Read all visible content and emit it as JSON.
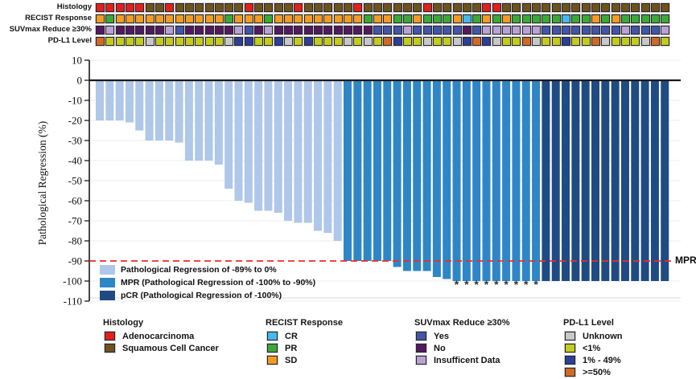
{
  "chart_data": {
    "type": "bar",
    "title": "",
    "xlabel": "",
    "ylabel": "Pathological Regression (%)",
    "ylim": [
      -110,
      10
    ],
    "yticks": [
      10,
      0,
      -10,
      -20,
      -30,
      -40,
      -50,
      -60,
      -70,
      -80,
      -90,
      -100,
      -110
    ],
    "grid": true,
    "legend_position": "inside bottom-left",
    "n_bars": 58,
    "values": [
      -20,
      -20,
      -20,
      -21,
      -25,
      -30,
      -30,
      -30,
      -31,
      -40,
      -40,
      -40,
      -42,
      -54,
      -60,
      -61,
      -65,
      -65,
      -66,
      -70,
      -71,
      -71,
      -75,
      -76,
      -80,
      -90,
      -90,
      -90,
      -90,
      -90,
      -93,
      -95,
      -95,
      -95,
      -98,
      -99,
      -100,
      -100,
      -100,
      -100,
      -100,
      -100,
      -100,
      -100,
      -100,
      -100,
      -100,
      -100,
      -100,
      -100,
      -100,
      -100,
      -100,
      -100,
      -100,
      -100,
      -100,
      -100
    ],
    "groups": {
      "light_count": 25,
      "mpr_count": 20,
      "pcr_count": 13
    },
    "reference_line": {
      "y": -90,
      "label": "MPR",
      "style": "dashed",
      "color": "#ee2b2b"
    },
    "asterisk_bar_indices_1based": [
      37,
      38,
      39,
      40,
      41,
      42,
      43,
      44,
      45
    ]
  },
  "tracks": {
    "rows": [
      {
        "label": "Histology",
        "palette": {
          "A": "adeno_red",
          "S": "squamous_brown"
        },
        "values": [
          "A",
          "A",
          "A",
          "A",
          "A",
          "S",
          "S",
          "A",
          "S",
          "S",
          "S",
          "S",
          "S",
          "S",
          "S",
          "A",
          "S",
          "S",
          "S",
          "S",
          "A",
          "S",
          "S",
          "S",
          "S",
          "S",
          "A",
          "S",
          "S",
          "S",
          "S",
          "S",
          "S",
          "A",
          "S",
          "S",
          "S",
          "S",
          "S",
          "A",
          "A",
          "S",
          "S",
          "S",
          "S",
          "S",
          "S",
          "S",
          "S",
          "S",
          "S",
          "S",
          "S",
          "S",
          "S",
          "S",
          "S",
          "S"
        ]
      },
      {
        "label": "RECIST Response",
        "palette": {
          "CR": "recist_cr",
          "PR": "recist_pr",
          "SD": "recist_sd"
        },
        "values": [
          "SD",
          "PR",
          "SD",
          "SD",
          "SD",
          "SD",
          "SD",
          "SD",
          "SD",
          "SD",
          "SD",
          "SD",
          "SD",
          "PR",
          "SD",
          "SD",
          "SD",
          "PR",
          "SD",
          "SD",
          "SD",
          "SD",
          "SD",
          "SD",
          "SD",
          "SD",
          "SD",
          "PR",
          "SD",
          "SD",
          "PR",
          "PR",
          "SD",
          "PR",
          "PR",
          "PR",
          "SD",
          "CR",
          "PR",
          "SD",
          "PR",
          "SD",
          "PR",
          "PR",
          "PR",
          "PR",
          "PR",
          "CR",
          "PR",
          "PR",
          "SD",
          "PR",
          "SD",
          "PR",
          "PR",
          "PR",
          "PR",
          "PR"
        ]
      },
      {
        "label": "SUVmax Reduce ≥30%",
        "palette": {
          "Y": "suv_yes",
          "N": "suv_no",
          "I": "suv_insufficient"
        },
        "values": [
          "N",
          "I",
          "N",
          "N",
          "N",
          "N",
          "N",
          "I",
          "Y",
          "N",
          "N",
          "N",
          "N",
          "N",
          "I",
          "Y",
          "N",
          "I",
          "N",
          "N",
          "N",
          "N",
          "N",
          "N",
          "N",
          "N",
          "N",
          "N",
          "Y",
          "Y",
          "Y",
          "I",
          "Y",
          "Y",
          "Y",
          "Y",
          "Y",
          "N",
          "Y",
          "I",
          "I",
          "I",
          "I",
          "I",
          "I",
          "Y",
          "Y",
          "Y",
          "Y",
          "Y",
          "Y",
          "Y",
          "Y",
          "I",
          "Y",
          "Y",
          "Y",
          "I"
        ]
      },
      {
        "label": "PD-L1 Level",
        "palette": {
          "U": "pdl1_unknown",
          "L": "pdl1_lt1",
          "M": "pdl1_1to49",
          "H": "pdl1_ge50"
        },
        "values": [
          "H",
          "L",
          "L",
          "L",
          "L",
          "U",
          "L",
          "L",
          "L",
          "L",
          "L",
          "L",
          "L",
          "U",
          "M",
          "M",
          "L",
          "L",
          "M",
          "U",
          "L",
          "M",
          "L",
          "L",
          "L",
          "U",
          "L",
          "U",
          "L",
          "H",
          "M",
          "L",
          "L",
          "U",
          "L",
          "L",
          "U",
          "M",
          "H",
          "M",
          "U",
          "L",
          "L",
          "H",
          "U",
          "L",
          "L",
          "M",
          "L",
          "L",
          "H",
          "U",
          "L",
          "L",
          "L",
          "U",
          "H",
          "L"
        ]
      }
    ]
  },
  "inner_legend": [
    {
      "label": "Pathological Regression of -89% to 0%",
      "color_key": "bar_light"
    },
    {
      "label": "MPR (Pathological Regression of -100% to -90%)",
      "color_key": "bar_mpr"
    },
    {
      "label": "pCR (Pathological Regression of -100%)",
      "color_key": "bar_pcr"
    }
  ],
  "bottom_legend": [
    {
      "title": "Histology",
      "items": [
        {
          "label": "Adenocarcinoma",
          "color_key": "adeno_red"
        },
        {
          "label": "Squamous Cell Cancer",
          "color_key": "squamous_brown"
        }
      ]
    },
    {
      "title": "RECIST Response",
      "items": [
        {
          "label": "CR",
          "color_key": "recist_cr"
        },
        {
          "label": "PR",
          "color_key": "recist_pr"
        },
        {
          "label": "SD",
          "color_key": "recist_sd"
        }
      ]
    },
    {
      "title": "SUVmax Reduce ≥30%",
      "items": [
        {
          "label": "Yes",
          "color_key": "suv_yes"
        },
        {
          "label": "No",
          "color_key": "suv_no"
        },
        {
          "label": "Insufficent Data",
          "color_key": "suv_insufficient"
        }
      ]
    },
    {
      "title": "PD-L1 Level",
      "items": [
        {
          "label": "Unknown",
          "color_key": "pdl1_unknown"
        },
        {
          "label": "<1%",
          "color_key": "pdl1_lt1"
        },
        {
          "label": "1% - 49%",
          "color_key": "pdl1_1to49"
        },
        {
          "label": ">=50%",
          "color_key": "pdl1_ge50"
        }
      ]
    }
  ],
  "colors": {
    "adeno_red": "#e2201c",
    "squamous_brown": "#6e531d",
    "recist_cr": "#45b9ea",
    "recist_pr": "#3baa35",
    "recist_sd": "#f49b20",
    "suv_yes": "#4156a8",
    "suv_no": "#54185e",
    "suv_insufficient": "#b9a1d4",
    "pdl1_unknown": "#c8c8c8",
    "pdl1_lt1": "#c3cb1c",
    "pdl1_1to49": "#2c3f96",
    "pdl1_ge50": "#d26a24",
    "bar_light": "#afc7e9",
    "bar_mpr": "#2f86c6",
    "bar_pcr": "#1f4b82",
    "mpr_line_red": "#ee2b2b"
  }
}
